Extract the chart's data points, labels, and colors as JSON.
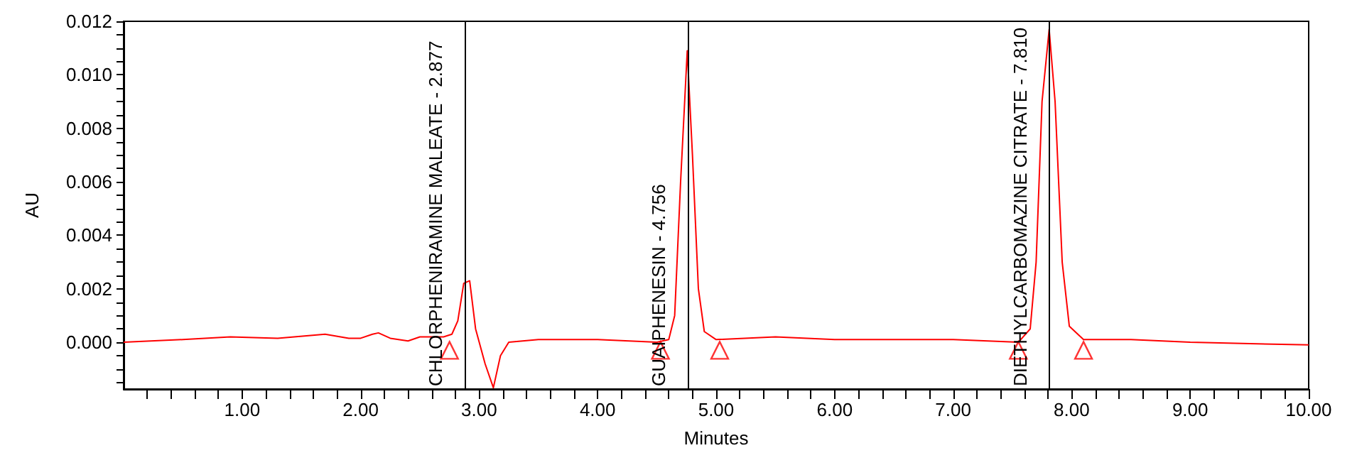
{
  "chart_data": {
    "type": "line",
    "xlabel": "Minutes",
    "ylabel": "AU",
    "xlim": [
      0,
      10
    ],
    "ylim": [
      -0.00175,
      0.012
    ],
    "xticks": [
      {
        "value": 0.2,
        "label": null
      },
      {
        "value": 0.4,
        "label": null
      },
      {
        "value": 0.6,
        "label": null
      },
      {
        "value": 0.8,
        "label": null
      },
      {
        "value": 1,
        "label": "1.00"
      },
      {
        "value": 1.2,
        "label": null
      },
      {
        "value": 1.4,
        "label": null
      },
      {
        "value": 1.6,
        "label": null
      },
      {
        "value": 1.8,
        "label": null
      },
      {
        "value": 2,
        "label": "2.00"
      },
      {
        "value": 2.2,
        "label": null
      },
      {
        "value": 2.4,
        "label": null
      },
      {
        "value": 2.6,
        "label": null
      },
      {
        "value": 2.8,
        "label": null
      },
      {
        "value": 3,
        "label": "3.00"
      },
      {
        "value": 3.2,
        "label": null
      },
      {
        "value": 3.4,
        "label": null
      },
      {
        "value": 3.6,
        "label": null
      },
      {
        "value": 3.8,
        "label": null
      },
      {
        "value": 4,
        "label": "4.00"
      },
      {
        "value": 4.2,
        "label": null
      },
      {
        "value": 4.4,
        "label": null
      },
      {
        "value": 4.6,
        "label": null
      },
      {
        "value": 4.8,
        "label": null
      },
      {
        "value": 5,
        "label": "5.00"
      },
      {
        "value": 5.2,
        "label": null
      },
      {
        "value": 5.4,
        "label": null
      },
      {
        "value": 5.6,
        "label": null
      },
      {
        "value": 5.8,
        "label": null
      },
      {
        "value": 6,
        "label": "6.00"
      },
      {
        "value": 6.2,
        "label": null
      },
      {
        "value": 6.4,
        "label": null
      },
      {
        "value": 6.6,
        "label": null
      },
      {
        "value": 6.8,
        "label": null
      },
      {
        "value": 7,
        "label": "7.00"
      },
      {
        "value": 7.2,
        "label": null
      },
      {
        "value": 7.4,
        "label": null
      },
      {
        "value": 7.6,
        "label": null
      },
      {
        "value": 7.8,
        "label": null
      },
      {
        "value": 8,
        "label": "8.00"
      },
      {
        "value": 8.2,
        "label": null
      },
      {
        "value": 8.4,
        "label": null
      },
      {
        "value": 8.6,
        "label": null
      },
      {
        "value": 8.8,
        "label": null
      },
      {
        "value": 9,
        "label": "9.00"
      },
      {
        "value": 9.2,
        "label": null
      },
      {
        "value": 9.4,
        "label": null
      },
      {
        "value": 9.6,
        "label": null
      },
      {
        "value": 9.8,
        "label": null
      },
      {
        "value": 10,
        "label": "10.00"
      }
    ],
    "yticks": [
      {
        "value": -0.0015,
        "label": null
      },
      {
        "value": -0.001,
        "label": null
      },
      {
        "value": -0.0005,
        "label": null
      },
      {
        "value": 0,
        "label": "0.000"
      },
      {
        "value": 0.0005,
        "label": null
      },
      {
        "value": 0.001,
        "label": null
      },
      {
        "value": 0.0015,
        "label": null
      },
      {
        "value": 0.002,
        "label": "0.002"
      },
      {
        "value": 0.0025,
        "label": null
      },
      {
        "value": 0.003,
        "label": null
      },
      {
        "value": 0.0035,
        "label": null
      },
      {
        "value": 0.004,
        "label": "0.004"
      },
      {
        "value": 0.0045,
        "label": null
      },
      {
        "value": 0.005,
        "label": null
      },
      {
        "value": 0.0055,
        "label": null
      },
      {
        "value": 0.006,
        "label": "0.006"
      },
      {
        "value": 0.0065,
        "label": null
      },
      {
        "value": 0.007,
        "label": null
      },
      {
        "value": 0.0075,
        "label": null
      },
      {
        "value": 0.008,
        "label": "0.008"
      },
      {
        "value": 0.0085,
        "label": null
      },
      {
        "value": 0.009,
        "label": null
      },
      {
        "value": 0.0095,
        "label": null
      },
      {
        "value": 0.01,
        "label": "0.010"
      },
      {
        "value": 0.0105,
        "label": null
      },
      {
        "value": 0.011,
        "label": null
      },
      {
        "value": 0.0115,
        "label": null
      },
      {
        "value": 0.012,
        "label": "0.012"
      }
    ],
    "grid": false,
    "marker": "none",
    "series": [
      {
        "color": "#ff0000",
        "x": [
          0,
          0.5,
          0.9,
          1.3,
          1.7,
          1.9,
          2.0,
          2.1,
          2.15,
          2.25,
          2.4,
          2.5,
          2.7,
          2.77,
          2.82,
          2.87,
          2.92,
          2.97,
          3.05,
          3.12,
          3.18,
          3.25,
          3.5,
          4.0,
          4.5,
          4.6,
          4.65,
          4.7,
          4.756,
          4.8,
          4.85,
          4.9,
          5.0,
          5.5,
          6.0,
          7.0,
          7.55,
          7.65,
          7.7,
          7.75,
          7.81,
          7.86,
          7.92,
          7.98,
          8.1,
          8.5,
          9.0,
          10.0
        ],
        "values": [
          0,
          0.0001,
          0.0002,
          0.00015,
          0.0003,
          0.00015,
          0.00015,
          0.0003,
          0.00035,
          0.00015,
          5e-05,
          0.0002,
          0.0002,
          0.0003,
          0.0008,
          0.0022,
          0.0023,
          0.0005,
          -0.0008,
          -0.0017,
          -0.0005,
          0,
          0.0001,
          0.0001,
          0,
          0.0001,
          0.001,
          0.006,
          0.0109,
          0.007,
          0.002,
          0.0004,
          0.0001,
          0.0002,
          0.0001,
          0.0001,
          0,
          0.0005,
          0.003,
          0.009,
          0.0117,
          0.009,
          0.003,
          0.0006,
          0.0001,
          0.0001,
          0,
          -0.0001
        ]
      },
      {
        "type": "scatter",
        "marker": "triangle",
        "color": "#ff0000",
        "x": [
          2.75,
          4.53,
          5.03,
          7.55,
          8.1
        ],
        "values": [
          -0.0003,
          -0.0003,
          -0.0003,
          -0.0003,
          -0.0003
        ]
      }
    ],
    "ref_lines": [
      {
        "axis": "x",
        "value": 2.877,
        "label": "CHLORPHENIRAMINE MALEATE - 2.877",
        "color": "#000000"
      },
      {
        "axis": "x",
        "value": 4.756,
        "label": "GUAIPHENESIN - 4.756",
        "color": "#000000"
      },
      {
        "axis": "x",
        "value": 7.81,
        "label": "DIETHYLCARBOMAZINE CITRATE - 7.810",
        "color": "#000000"
      }
    ]
  }
}
